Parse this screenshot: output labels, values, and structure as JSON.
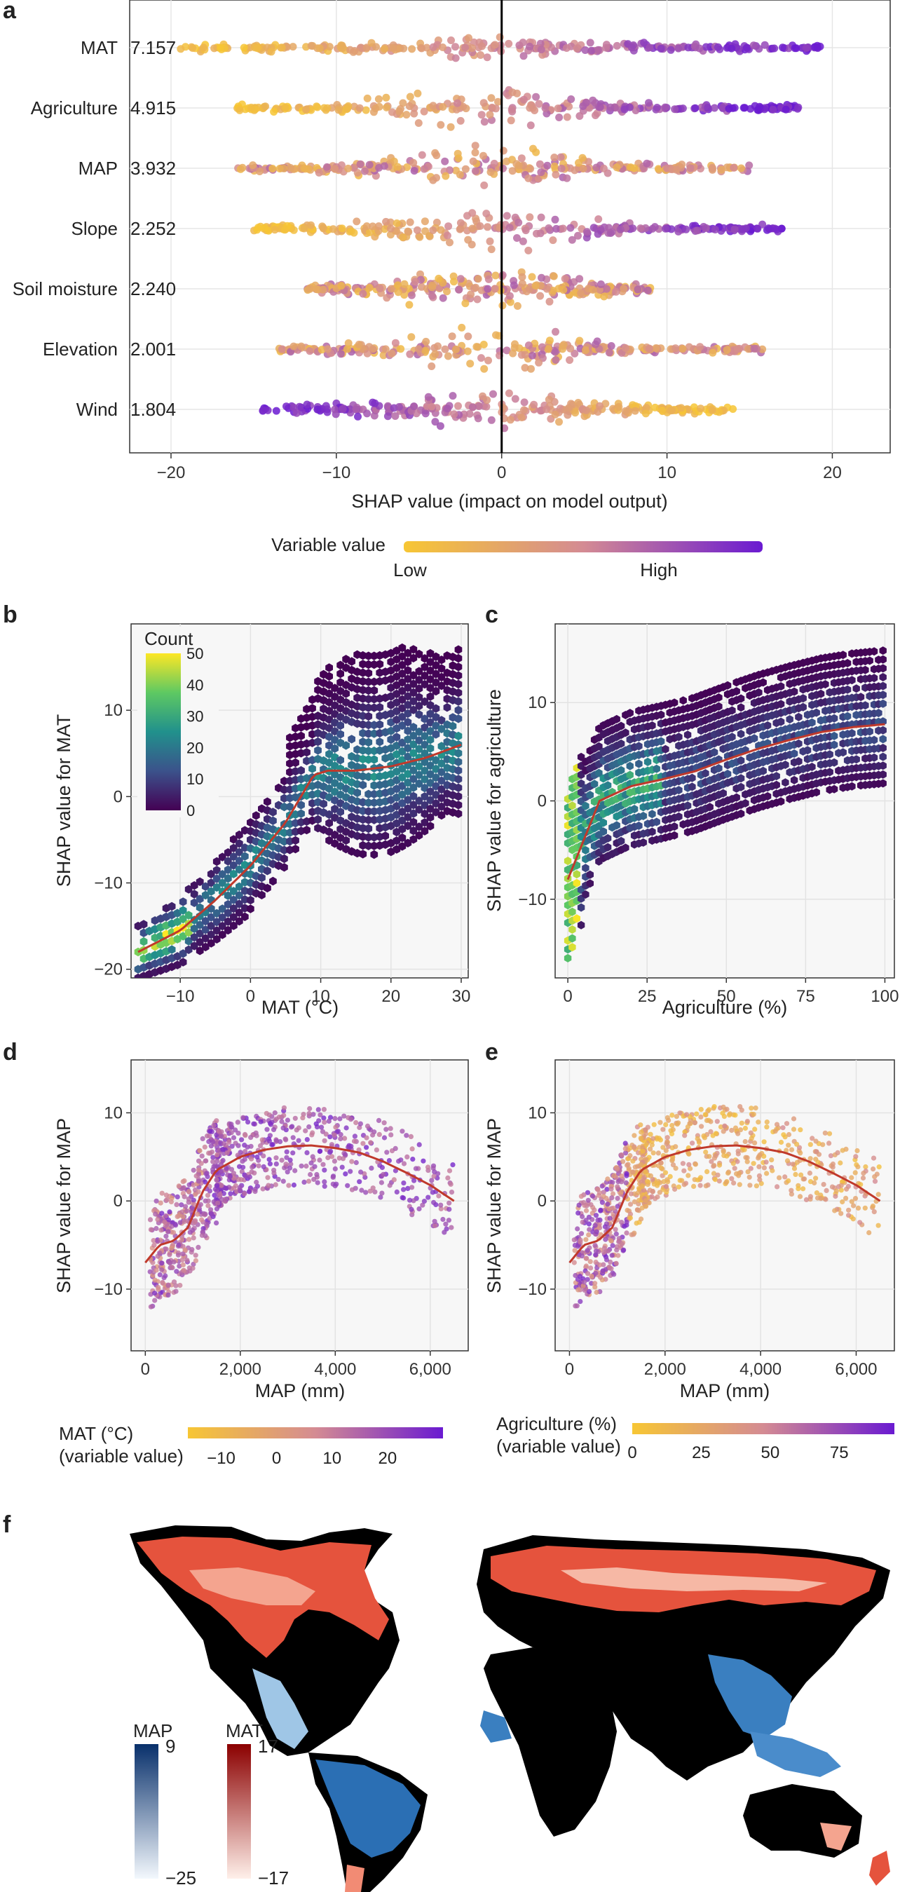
{
  "panel_labels": {
    "a": "a",
    "b": "b",
    "c": "c",
    "d": "d",
    "e": "e",
    "f": "f"
  },
  "colors": {
    "low": "#f7c634",
    "mid": "#d48b93",
    "high": "#6a1ad1",
    "fit": "#c0392b",
    "map_dark": "#08306b",
    "mat_dark": "#8b0000",
    "land": "#000000"
  },
  "chart_data": [
    {
      "id": "a",
      "type": "scatter",
      "subtype": "beeswarm",
      "features": [
        "MAT",
        "Agriculture",
        "MAP",
        "Slope",
        "Soil moisture",
        "Elevation",
        "Wind"
      ],
      "importance": [
        "7.157",
        "4.915",
        "3.932",
        "2.252",
        "2.240",
        "2.001",
        "1.804"
      ],
      "shap_range": [
        [
          -19.5,
          19.3
        ],
        [
          -16,
          18
        ],
        [
          -16,
          15
        ],
        [
          -15,
          17
        ],
        [
          -12,
          9
        ],
        [
          -13.5,
          16
        ],
        [
          -14.5,
          14
        ]
      ],
      "xlabel": "SHAP value (impact on model output)",
      "xticks": [
        "−20",
        "−10",
        "0",
        "10",
        "20"
      ],
      "xtick_values": [
        -20,
        -10,
        0,
        10,
        20
      ],
      "xlim": [
        -22.5,
        23.5
      ],
      "legend": {
        "title": "Variable value",
        "low": "Low",
        "high": "High"
      }
    },
    {
      "id": "b",
      "type": "heatmap",
      "subtype": "hexbin",
      "xlabel": "MAT (°C)",
      "ylabel": "SHAP value for MAT",
      "xticks": [
        "−10",
        "0",
        "10",
        "20",
        "30"
      ],
      "xtick_values": [
        -10,
        0,
        10,
        20,
        30
      ],
      "yticks": [
        "10",
        "0",
        "−10",
        "−20"
      ],
      "ytick_values": [
        10,
        0,
        -10,
        -20
      ],
      "xlim": [
        -17,
        31
      ],
      "ylim": [
        -21,
        20
      ],
      "colorbar": {
        "title": "Count",
        "ticks": [
          "50",
          "40",
          "30",
          "20",
          "10",
          "0"
        ],
        "tick_values": [
          50,
          40,
          30,
          20,
          10,
          0
        ]
      },
      "fit": {
        "x": [
          -16,
          -10,
          -5,
          0,
          5,
          9,
          11,
          15,
          20,
          25,
          30
        ],
        "y": [
          -18,
          -15.5,
          -12,
          -8,
          -3,
          2.5,
          3,
          3,
          3.5,
          4.5,
          6
        ]
      }
    },
    {
      "id": "c",
      "type": "heatmap",
      "subtype": "hexbin",
      "xlabel": "Agriculture (%)",
      "ylabel": "SHAP value for agriculture",
      "xticks": [
        "0",
        "25",
        "50",
        "75",
        "100"
      ],
      "xtick_values": [
        0,
        25,
        50,
        75,
        100
      ],
      "yticks": [
        "10",
        "0",
        "−10"
      ],
      "ytick_values": [
        10,
        0,
        -10
      ],
      "xlim": [
        -4,
        103
      ],
      "ylim": [
        -18,
        18
      ],
      "fit": {
        "x": [
          0,
          5,
          10,
          20,
          30,
          40,
          50,
          60,
          70,
          80,
          90,
          100
        ],
        "y": [
          -8,
          -4,
          0,
          1.5,
          2.2,
          3,
          4.2,
          5.3,
          6.2,
          7,
          7.5,
          7.8
        ]
      }
    },
    {
      "id": "d",
      "type": "scatter",
      "xlabel": "MAP (mm)",
      "ylabel": "SHAP value for MAP",
      "xticks": [
        "0",
        "2,000",
        "4,000",
        "6,000"
      ],
      "xtick_values": [
        0,
        2000,
        4000,
        6000
      ],
      "yticks": [
        "10",
        "0",
        "−10"
      ],
      "ytick_values": [
        10,
        0,
        -10
      ],
      "xlim": [
        -300,
        6800
      ],
      "ylim": [
        -17,
        16
      ],
      "fit": {
        "x": [
          0,
          300,
          600,
          900,
          1200,
          1500,
          2000,
          2500,
          3000,
          3500,
          4000,
          4500,
          5000,
          5500,
          6000,
          6500
        ],
        "y": [
          -7,
          -5,
          -4.5,
          -3,
          1,
          3.5,
          5,
          5.8,
          6.2,
          6.3,
          6,
          5.5,
          4.5,
          3.2,
          1.8,
          0
        ]
      },
      "colorbar": {
        "title_line1": "MAT (°C)",
        "title_line2": "(variable value)",
        "ticks": [
          "−10",
          "0",
          "10",
          "20"
        ],
        "tick_values": [
          -10,
          0,
          10,
          20
        ],
        "range": [
          -16,
          30
        ]
      }
    },
    {
      "id": "e",
      "type": "scatter",
      "xlabel": "MAP (mm)",
      "ylabel": "SHAP value for MAP",
      "xticks": [
        "0",
        "2,000",
        "4,000",
        "6,000"
      ],
      "xtick_values": [
        0,
        2000,
        4000,
        6000
      ],
      "yticks": [
        "10",
        "0",
        "−10"
      ],
      "ytick_values": [
        10,
        0,
        -10
      ],
      "xlim": [
        -300,
        6800
      ],
      "ylim": [
        -17,
        16
      ],
      "fit": {
        "x": [
          0,
          300,
          600,
          900,
          1200,
          1500,
          2000,
          2500,
          3000,
          3500,
          4000,
          4500,
          5000,
          5500,
          6000,
          6500
        ],
        "y": [
          -7,
          -5,
          -4.5,
          -3,
          1,
          3.5,
          5,
          5.8,
          6.2,
          6.3,
          6,
          5.5,
          4.5,
          3.2,
          1.8,
          0
        ]
      },
      "colorbar": {
        "title_line1": "Agriculture (%)",
        "title_line2": "(variable value)",
        "ticks": [
          "0",
          "25",
          "50",
          "75"
        ],
        "tick_values": [
          0,
          25,
          50,
          75
        ],
        "range": [
          0,
          95
        ]
      }
    }
  ],
  "map_panel": {
    "legend_map": {
      "title": "MAP",
      "max": "9",
      "min": "−25"
    },
    "legend_mat": {
      "title": "MAT",
      "max": "17",
      "min": "−17"
    }
  }
}
